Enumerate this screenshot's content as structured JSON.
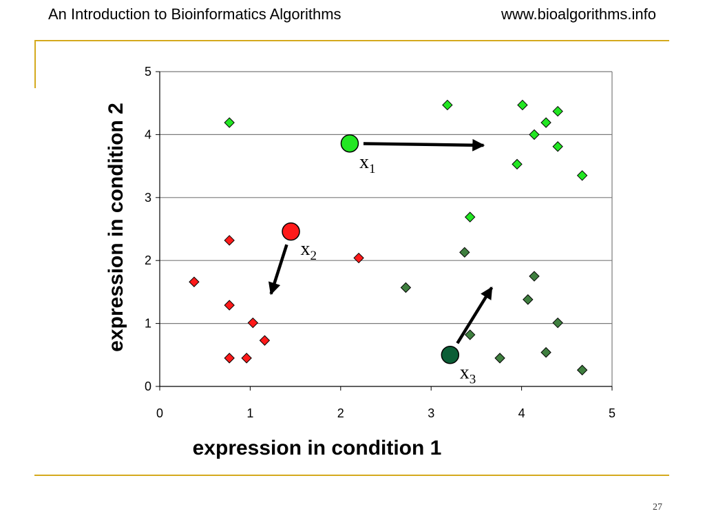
{
  "header": {
    "title": "An Introduction to Bioinformatics Algorithms",
    "url": "www.bioalgorithms.info"
  },
  "footer": {
    "page_number": "27"
  },
  "colors": {
    "bright_green": "#22e622",
    "dark_green": "#3f7f3f",
    "red": "#ff1a1a",
    "center_dark_green": "#0b5e36",
    "rule_gold": "#d4a91c",
    "gridline": "#7a7a7a"
  },
  "chart_data": {
    "type": "scatter",
    "title": "",
    "xlabel": "expression in condition 1",
    "ylabel": "expression in condition 2",
    "xlim": [
      0,
      5
    ],
    "ylim": [
      0,
      5
    ],
    "xticks": [
      "0",
      "1",
      "2",
      "3",
      "4",
      "5"
    ],
    "yticks": [
      "0",
      "1",
      "2",
      "3",
      "4",
      "5"
    ],
    "grid": "horizontal",
    "legend": "none",
    "series": [
      {
        "marker": "diamond",
        "color": "#22e622",
        "x": [
          0.77,
          3.18,
          4.01,
          4.14,
          4.27,
          4.4,
          4.4,
          3.95,
          4.67,
          3.43
        ],
        "y": [
          4.19,
          4.47,
          4.47,
          4.0,
          4.19,
          4.37,
          3.81,
          3.53,
          3.35,
          2.69
        ]
      },
      {
        "marker": "diamond",
        "color": "#3f7f3f",
        "x": [
          3.37,
          2.72,
          4.14,
          4.07,
          4.4,
          3.43,
          3.76,
          4.27,
          4.67
        ],
        "y": [
          2.13,
          1.57,
          1.75,
          1.38,
          1.01,
          0.82,
          0.45,
          0.54,
          0.26
        ]
      },
      {
        "marker": "diamond",
        "color": "#ff1a1a",
        "x": [
          0.77,
          0.38,
          0.77,
          1.03,
          1.16,
          0.77,
          0.96,
          2.2
        ],
        "y": [
          2.32,
          1.66,
          1.29,
          1.01,
          0.73,
          0.45,
          0.45,
          2.04
        ]
      }
    ],
    "centers": [
      {
        "label": "x",
        "sub": "1",
        "x": 2.1,
        "y": 3.86,
        "color": "#22e622",
        "arrow_to": [
          3.58,
          3.83
        ]
      },
      {
        "label": "x",
        "sub": "2",
        "x": 1.45,
        "y": 2.46,
        "color": "#ff1a1a",
        "arrow_to": [
          1.23,
          1.47
        ]
      },
      {
        "label": "x",
        "sub": "3",
        "x": 3.21,
        "y": 0.5,
        "color": "#0b5e36",
        "arrow_to": [
          3.67,
          1.57
        ]
      }
    ]
  }
}
